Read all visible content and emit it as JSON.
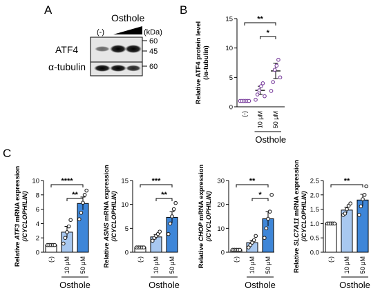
{
  "panels": {
    "a": "A",
    "b": "B",
    "c": "C"
  },
  "blot": {
    "treatment": "Osthole",
    "lane_control": "(-)",
    "kda_label": "(kDa)",
    "rows": [
      {
        "name": "ATF4",
        "markers": [
          "60",
          "45"
        ]
      },
      {
        "name": "α-tubulin",
        "markers": [
          "60"
        ]
      }
    ]
  },
  "colors": {
    "light_blue": "#a8c8f0",
    "mid_blue": "#7eaee8",
    "dark_blue": "#3e86d8",
    "purple": "#7a3f9d"
  },
  "chart_data": [
    {
      "type": "scatter",
      "panel": "B",
      "categories": [
        "(-)",
        "10 μM",
        "50 μM"
      ],
      "ylabel": [
        "Relative ATF4 protein level",
        "(/α-tubulin)"
      ],
      "ylim": [
        0,
        15
      ],
      "yticks": [
        "0",
        "5",
        "10",
        "15"
      ],
      "group_label": "Osthole",
      "means": [
        1.0,
        2.8,
        6.1
      ],
      "sem": [
        0.05,
        0.7,
        1.3
      ],
      "points": [
        [
          1,
          1,
          1,
          1,
          1,
          1
        ],
        [
          1.2,
          2.1,
          2.8,
          3.5,
          4.0,
          1.8
        ],
        [
          2.7,
          4.2,
          6.3,
          7.0,
          8.0,
          5.0
        ]
      ],
      "significance": [
        {
          "from": 0,
          "to": 2,
          "label": "**"
        },
        {
          "from": 1,
          "to": 2,
          "label": "*"
        }
      ]
    },
    {
      "type": "bar",
      "panel": "C",
      "categories": [
        "(-)",
        "10 μM",
        "50 μM"
      ],
      "ylabel": [
        "Relative ATF3 mRNA expression",
        "(/CYCLOPHILIN)"
      ],
      "gene": "ATF3",
      "ylim": [
        0,
        10
      ],
      "yticks": [
        "0",
        "2",
        "4",
        "6",
        "8",
        "10"
      ],
      "group_label": "Osthole",
      "values": [
        1.0,
        2.8,
        6.8
      ],
      "sem": [
        0.05,
        0.8,
        0.9
      ],
      "points": [
        [
          1,
          1,
          1,
          1,
          1
        ],
        [
          1.2,
          2.0,
          2.8,
          3.6,
          4.5
        ],
        [
          4.6,
          5.5,
          6.9,
          8.0,
          8.6
        ]
      ],
      "significance": [
        {
          "from": 0,
          "to": 2,
          "label": "****"
        },
        {
          "from": 1,
          "to": 2,
          "label": "**"
        }
      ]
    },
    {
      "type": "bar",
      "panel": "C",
      "categories": [
        "(-)",
        "10 μM",
        "50 μM"
      ],
      "ylabel": [
        "Relative ASNS mRNA expression",
        "(/CYCLOPHILIN)"
      ],
      "gene": "ASNS",
      "ylim": [
        0,
        15
      ],
      "yticks": [
        "0",
        "5",
        "10",
        "15"
      ],
      "group_label": "Osthole",
      "values": [
        1.0,
        3.2,
        7.3
      ],
      "sem": [
        0.05,
        0.5,
        1.2
      ],
      "points": [
        [
          1,
          1,
          1,
          1,
          1
        ],
        [
          2.4,
          3.0,
          3.4,
          3.8,
          4.3
        ],
        [
          3.8,
          6.0,
          7.5,
          9.0,
          10.3
        ]
      ],
      "significance": [
        {
          "from": 0,
          "to": 2,
          "label": "***"
        },
        {
          "from": 1,
          "to": 2,
          "label": "**"
        }
      ]
    },
    {
      "type": "bar",
      "panel": "C",
      "categories": [
        "(-)",
        "10 μM",
        "50 μM"
      ],
      "ylabel": [
        "Relative CHOP mRNA expression",
        "(/CYCLOPHILIN)"
      ],
      "gene": "CHOP",
      "ylim": [
        0,
        30
      ],
      "yticks": [
        "0",
        "10",
        "20",
        "30"
      ],
      "group_label": "Osthole",
      "values": [
        1.0,
        4.0,
        14.0
      ],
      "sem": [
        0.05,
        1.0,
        3.0
      ],
      "points": [
        [
          1,
          1,
          1,
          1,
          1
        ],
        [
          2.0,
          3.0,
          4.0,
          5.0,
          6.8
        ],
        [
          6.0,
          10.0,
          14.0,
          17.0,
          24.0
        ]
      ],
      "significance": [
        {
          "from": 0,
          "to": 2,
          "label": "**"
        },
        {
          "from": 1,
          "to": 2,
          "label": "*"
        }
      ]
    },
    {
      "type": "bar",
      "panel": "C",
      "categories": [
        "(-)",
        "10 μM",
        "50 μM"
      ],
      "ylabel": [
        "Relative SLC7A11 mRNA expression",
        "(/CYCLOPHILIN)"
      ],
      "gene": "SLC7A11",
      "ylim": [
        0,
        2.5
      ],
      "yticks": [
        "0.0",
        "0.5",
        "1.0",
        "1.5",
        "2.0",
        "2.5"
      ],
      "group_label": "Osthole",
      "values": [
        1.0,
        1.47,
        1.82
      ],
      "sem": [
        0.01,
        0.1,
        0.2
      ],
      "points": [
        [
          1,
          1,
          1,
          1,
          1
        ],
        [
          1.3,
          1.35,
          1.5,
          1.62,
          1.7
        ],
        [
          1.3,
          1.6,
          1.85,
          2.0,
          2.3
        ]
      ],
      "significance": [
        {
          "from": 0,
          "to": 2,
          "label": "**"
        }
      ]
    }
  ]
}
